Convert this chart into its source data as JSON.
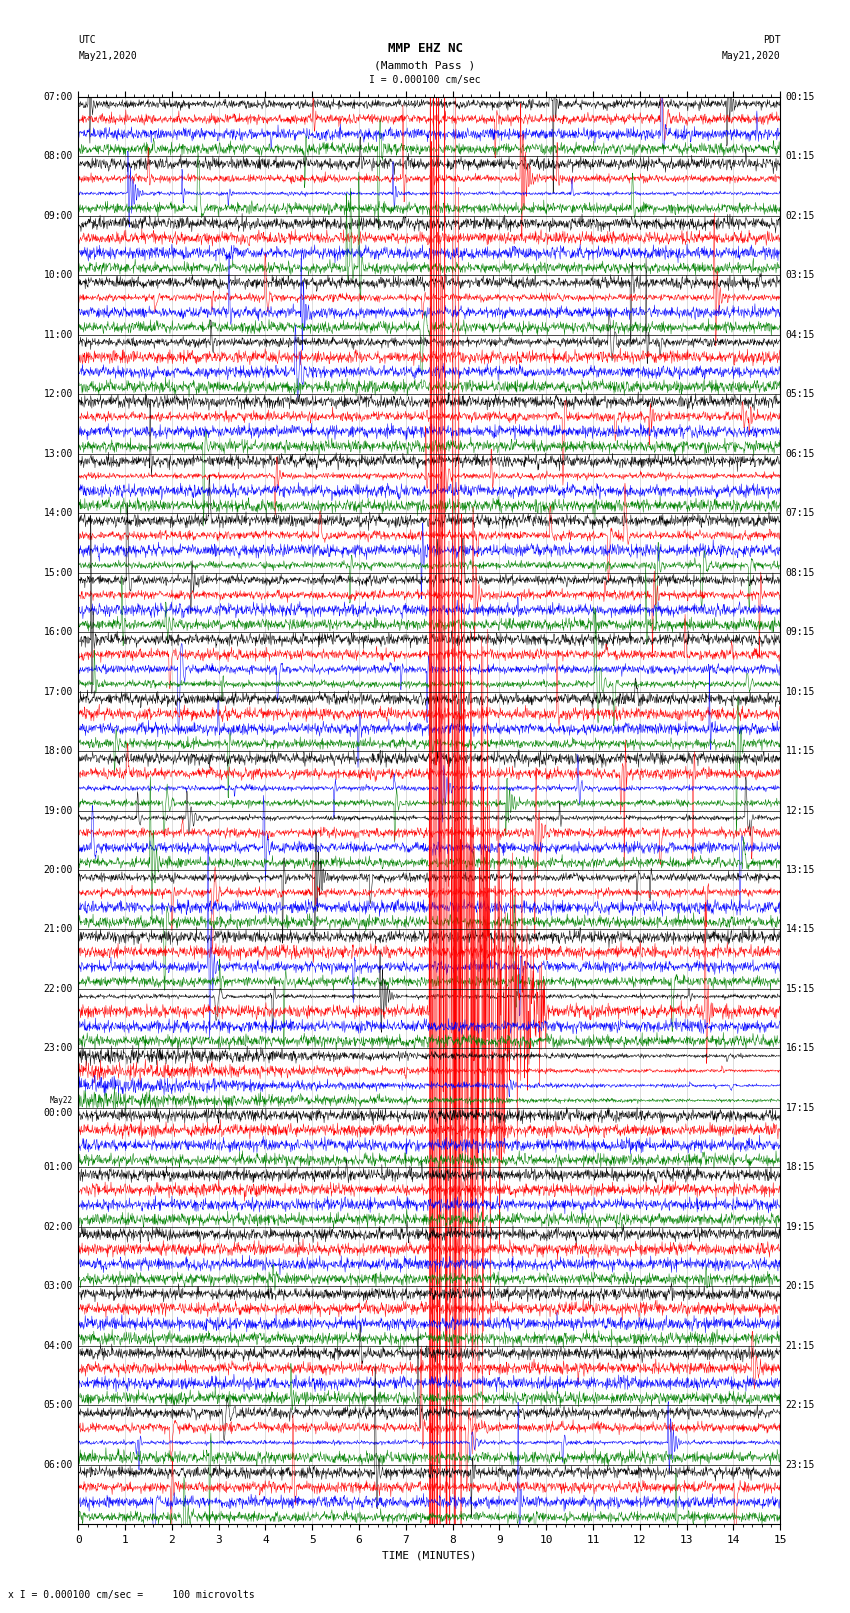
{
  "title_line1": "MMP EHZ NC",
  "title_line2": "(Mammoth Pass )",
  "scale_label": "I = 0.000100 cm/sec",
  "utc_label": "UTC\nMay21,2020",
  "pdt_label": "PDT\nMay21,2020",
  "xlabel": "TIME (MINUTES)",
  "footer_label": "x I = 0.000100 cm/sec =     100 microvolts",
  "left_times": [
    "07:00",
    "08:00",
    "09:00",
    "10:00",
    "11:00",
    "12:00",
    "13:00",
    "14:00",
    "15:00",
    "16:00",
    "17:00",
    "18:00",
    "19:00",
    "20:00",
    "21:00",
    "22:00",
    "23:00",
    "May22\n00:00",
    "01:00",
    "02:00",
    "03:00",
    "04:00",
    "05:00",
    "06:00"
  ],
  "right_times": [
    "00:15",
    "01:15",
    "02:15",
    "03:15",
    "04:15",
    "05:15",
    "06:15",
    "07:15",
    "08:15",
    "09:15",
    "10:15",
    "11:15",
    "12:15",
    "13:15",
    "14:15",
    "15:15",
    "16:15",
    "17:15",
    "18:15",
    "19:15",
    "20:15",
    "21:15",
    "22:15",
    "23:15"
  ],
  "n_rows": 24,
  "traces_per_row": 4,
  "trace_colors": [
    "black",
    "red",
    "blue",
    "green"
  ],
  "bg_color": "#ffffff",
  "grid_color": "#aaaaaa",
  "xmin": 0,
  "xmax": 15,
  "xticks": [
    0,
    1,
    2,
    3,
    4,
    5,
    6,
    7,
    8,
    9,
    10,
    11,
    12,
    13,
    14,
    15
  ],
  "figsize": [
    8.5,
    16.13
  ],
  "dpi": 100,
  "earthquake_row": 15,
  "earthquake_trace": 1,
  "earthquake_minute": 7.5,
  "noise_seed": 42,
  "font_size_title": 9,
  "font_size_labels": 7,
  "font_size_axis": 8
}
